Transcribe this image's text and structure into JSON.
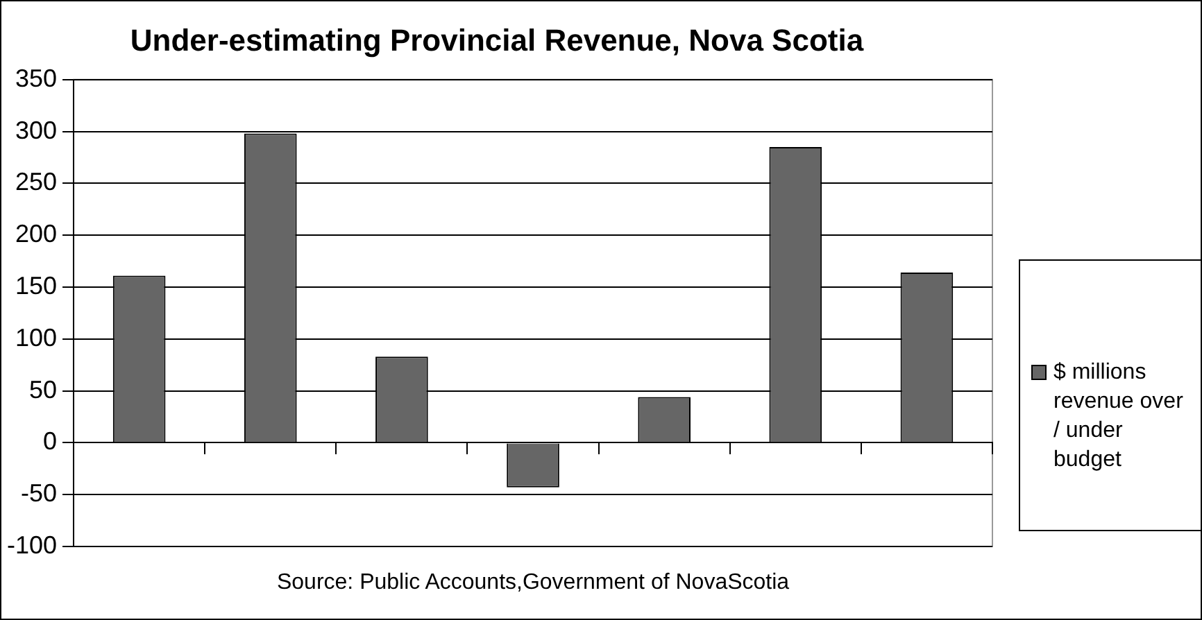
{
  "chart_data": {
    "type": "bar",
    "title": "Under-estimating Provincial Revenue, Nova Scotia",
    "categories": [
      null,
      null,
      null,
      null,
      null,
      null,
      null
    ],
    "series": [
      {
        "name": "$ millions revenue over / under budget",
        "color": "#666666",
        "values": [
          161,
          298,
          83,
          -43,
          44,
          285,
          164
        ]
      }
    ],
    "ylim": [
      -100,
      350
    ],
    "yticks": [
      -100,
      -50,
      0,
      50,
      100,
      150,
      200,
      250,
      300,
      350
    ],
    "grid": "y",
    "legend": "right",
    "annotations": [
      "Source: Public Accounts,Government of NovaScotia"
    ]
  }
}
